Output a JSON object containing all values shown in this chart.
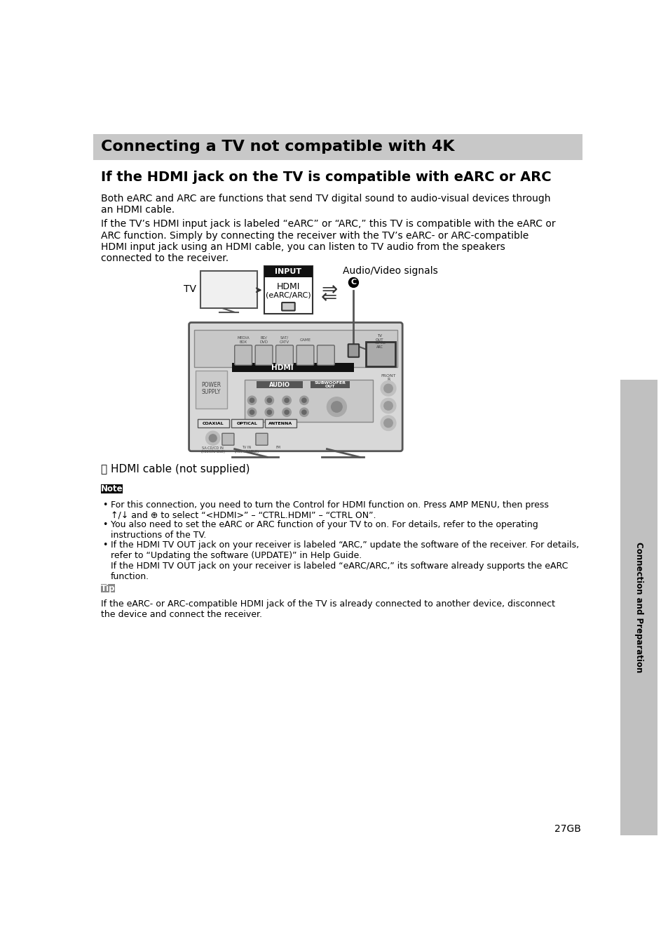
{
  "page_bg": "#ffffff",
  "header_bg": "#c8c8c8",
  "header_text": "Connecting a TV not compatible with 4K",
  "header_text_color": "#000000",
  "section_title": "If the HDMI jack on the TV is compatible with eARC or ARC",
  "body_paragraphs": [
    "Both eARC and ARC are functions that send TV digital sound to audio-visual devices through\nan HDMI cable.",
    "If the TV’s HDMI input jack is labeled “eARC” or “ARC,” this TV is compatible with the eARC or\nARC function. Simply by connecting the receiver with the TV’s eARC- or ARC-compatible\nHDMI input jack using an HDMI cable, you can listen to TV audio from the speakers\nconnected to the receiver."
  ],
  "note_label": "Note",
  "note_bullets": [
    "For this connection, you need to turn the Control for HDMI function on. Press AMP MENU, then press\n↑/↓ and ⊕ to select “<HDMI>” – “CTRL.HDMI” – “CTRL ON”.",
    "You also need to set the eARC or ARC function of your TV to on. For details, refer to the operating\ninstructions of the TV.",
    "If the HDMI TV OUT jack on your receiver is labeled “ARC,” update the software of the receiver. For details,\nrefer to “Updating the software (UPDATE)” in Help Guide.\nIf the HDMI TV OUT jack on your receiver is labeled “eARC/ARC,” its software already supports the eARC\nfunction."
  ],
  "tip_label": "Tip",
  "tip_text": "If the eARC- or ARC-compatible HDMI jack of the TV is already connected to another device, disconnect\nthe device and connect the receiver.",
  "footnote": "27GB",
  "sidebar_text": "Connection and Preparation",
  "cable_label": "Ⓒ HDMI cable (not supplied)",
  "diagram_tv_label": "TV",
  "diagram_audio_label": "Audio/Video signals",
  "diagram_input_line1": "INPUT",
  "diagram_input_line2": "HDMI",
  "diagram_input_line3": "(eARC/ARC)",
  "diagram_c_label": "Ⓒ"
}
